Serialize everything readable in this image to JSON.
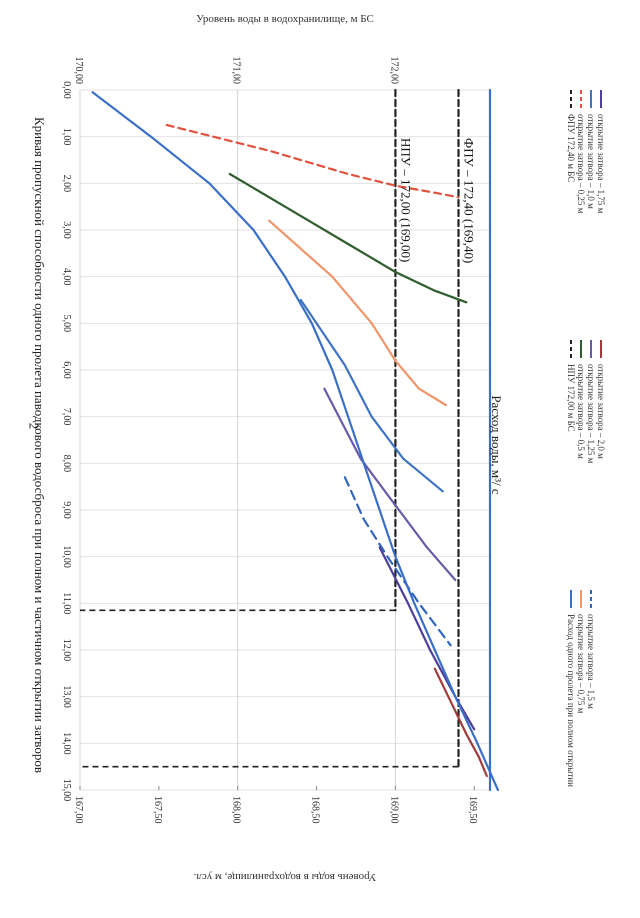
{
  "page_number": "2",
  "chart_data": {
    "type": "line",
    "title": "Кривая пропускной способности одного пролета паводкового водосброса при полном и частичном открытии затворов",
    "xlabel": "Расход воды, м³/ с",
    "ylabel_left": "Уровень воды в водохранилище, м БС",
    "ylabel_right": "Уровень воды в водохранилище, м усл.",
    "x_ticks": [
      "0,00",
      "1,00",
      "2,00",
      "3,00",
      "4,00",
      "5,00",
      "6,00",
      "7,00",
      "8,00",
      "9,00",
      "10,00",
      "11,00",
      "12,00",
      "13,00",
      "14,00",
      "15,00"
    ],
    "y_left_ticks": [
      "170,00",
      "171,00",
      "172,00"
    ],
    "y_right_ticks": [
      "167,00",
      "167,50",
      "168,00",
      "168,50",
      "169,00",
      "169,50"
    ],
    "xlim": [
      0,
      15
    ],
    "ylim_left": [
      170.0,
      172.6
    ],
    "fpu_label": "ФПУ – 172,40 (169,40)",
    "npu_label": "НПУ – 172,00  (169,00)",
    "fpu_level": 172.4,
    "npu_level": 172.0,
    "series": [
      {
        "name": "ФПУ 172,40 м БС",
        "color": "#222222",
        "dash": "6,4",
        "x": [
          0,
          14.5
        ],
        "y": [
          172.4,
          172.4
        ]
      },
      {
        "name": "НПУ 172,00 м БС",
        "color": "#222222",
        "dash": "6,4",
        "x": [
          0,
          11.15
        ],
        "y": [
          172.0,
          172.0
        ]
      },
      {
        "name": "открытие затвора – 0,25 м",
        "color": "#e0533f",
        "dash": "7,5",
        "x": [
          0.75,
          1.3,
          1.8,
          2.05,
          2.2,
          2.3
        ],
        "y": [
          170.55,
          171.2,
          171.7,
          172.0,
          172.25,
          172.4
        ]
      },
      {
        "name": "открытие затвора – 0,5 м",
        "color": "#2f5e2e",
        "dash": "",
        "x": [
          1.8,
          2.6,
          3.3,
          3.9,
          4.3,
          4.55
        ],
        "y": [
          170.95,
          171.35,
          171.7,
          172.0,
          172.25,
          172.45
        ]
      },
      {
        "name": "открытие затвора – 0,75 м",
        "color": "#f0956a",
        "dash": "",
        "x": [
          2.8,
          4.0,
          5.0,
          5.8,
          6.4,
          6.75
        ],
        "y": [
          171.2,
          171.6,
          171.85,
          172.0,
          172.15,
          172.32
        ]
      },
      {
        "name": "открытие затвора – 1,0 м",
        "color": "#3f73c4",
        "dash": "",
        "x": [
          4.5,
          5.9,
          7.0,
          7.9,
          8.6
        ],
        "y": [
          171.4,
          171.68,
          171.85,
          172.05,
          172.3
        ]
      },
      {
        "name": "открытие затвора – 1,25 м",
        "color": "#6a5aa8",
        "dash": "",
        "x": [
          6.4,
          7.9,
          8.9,
          9.8,
          10.5
        ],
        "y": [
          171.55,
          171.78,
          172.0,
          172.2,
          172.38
        ]
      },
      {
        "name": "открытие затвора – 1,5 м",
        "color": "#2f66c0",
        "dash": "9,6",
        "x": [
          8.3,
          9.2,
          10.0,
          11.0,
          11.9
        ],
        "y": [
          171.68,
          171.8,
          171.95,
          172.15,
          172.35
        ]
      },
      {
        "name": "открытие затвора – 1,75 м",
        "color": "#4e3f9a",
        "dash": "",
        "x": [
          9.8,
          11.0,
          12.0,
          13.0,
          13.7
        ],
        "y": [
          171.9,
          172.08,
          172.22,
          172.38,
          172.5
        ]
      },
      {
        "name": "открытие затвора – 2,0 м",
        "color": "#a33a3a",
        "dash": "",
        "x": [
          12.4,
          13.1,
          13.8,
          14.3,
          14.7
        ],
        "y": [
          172.25,
          172.35,
          172.45,
          172.53,
          172.58
        ]
      },
      {
        "name": "Расход одного пролета при полном открытии",
        "color": "#3a6fc8",
        "dash": "",
        "x": [
          0.05,
          1.0,
          2.0,
          3.0,
          4.0,
          5.0,
          6.0,
          7.0,
          8.0,
          9.0,
          10.0,
          11.0,
          12.0,
          13.0,
          14.0,
          15.0
        ],
        "y": [
          170.08,
          170.45,
          170.82,
          171.1,
          171.3,
          171.47,
          171.6,
          171.7,
          171.8,
          171.9,
          172.0,
          172.12,
          172.25,
          172.38,
          172.52,
          172.65
        ]
      },
      {
        "name": "Ось",
        "color": "#3a6fc8",
        "dash": "",
        "x": [
          0,
          15
        ],
        "y": [
          172.6,
          172.6
        ]
      }
    ],
    "legend": [
      {
        "label": "ФПУ 172,40 м БС",
        "color": "#222222",
        "dash": "4,3"
      },
      {
        "label": "НПУ 172,00 м БС",
        "color": "#222222",
        "dash": "4,3"
      },
      {
        "label": "Расход одного пролета при полном открытии",
        "color": "#3a6fc8",
        "dash": ""
      },
      {
        "label": "открытие затвора – 0,25 м",
        "color": "#e0533f",
        "dash": "4,3"
      },
      {
        "label": "открытие затвора – 0,5 м",
        "color": "#2f5e2e",
        "dash": ""
      },
      {
        "label": "открытие затвора – 0,75 м",
        "color": "#f0956a",
        "dash": ""
      },
      {
        "label": "открытие затвора – 1,0 м",
        "color": "#3f73c4",
        "dash": ""
      },
      {
        "label": "открытие затвора – 1,25 м",
        "color": "#6a5aa8",
        "dash": ""
      },
      {
        "label": "открытие затвора – 1,5 м",
        "color": "#2f66c0",
        "dash": "4,3"
      },
      {
        "label": "открытие затвора – 1,75 м",
        "color": "#4e3f9a",
        "dash": ""
      },
      {
        "label": "открытие затвора – 2,0 м",
        "color": "#a33a3a",
        "dash": ""
      }
    ]
  }
}
